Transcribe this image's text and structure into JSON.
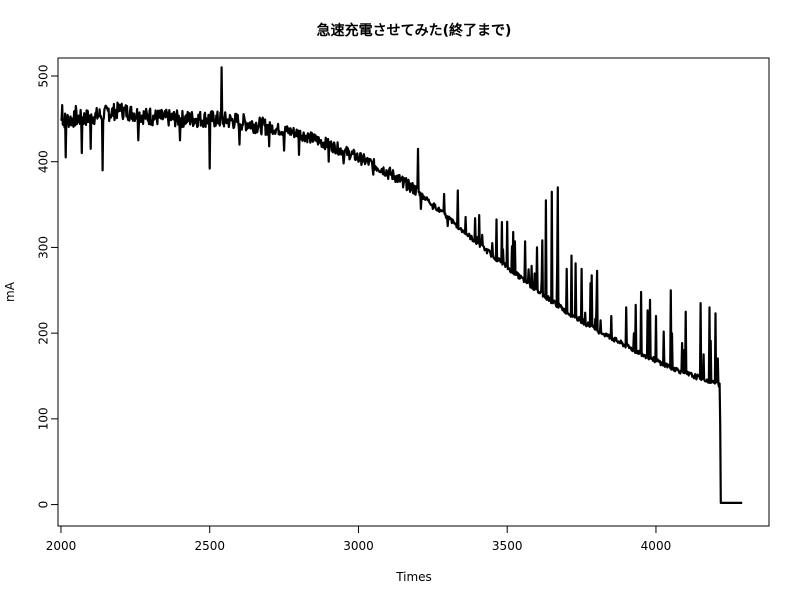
{
  "chart_data": {
    "type": "line",
    "title": "急速充電させてみた(終了まで)",
    "xlabel": "Times",
    "ylabel": "mA",
    "xlim": [
      1990,
      4380
    ],
    "ylim": [
      -25,
      521
    ],
    "x_ticks": [
      2000,
      2500,
      3000,
      3500,
      4000
    ],
    "y_ticks": [
      0,
      100,
      200,
      300,
      400,
      500
    ],
    "x_tick_labels": [
      "2000",
      "2500",
      "3000",
      "3500",
      "4000"
    ],
    "y_tick_labels": [
      "0",
      "100",
      "200",
      "300",
      "400",
      "500"
    ],
    "grid": false,
    "legend": "none",
    "line_color": "#000000",
    "series": [
      {
        "x_start": 2000,
        "x_end": 4290,
        "baseline": [
          [
            2000,
            448
          ],
          [
            2100,
            452
          ],
          [
            2200,
            460
          ],
          [
            2300,
            452
          ],
          [
            2400,
            450
          ],
          [
            2500,
            450
          ],
          [
            2600,
            447
          ],
          [
            2700,
            440
          ],
          [
            2800,
            433
          ],
          [
            2900,
            420
          ],
          [
            3000,
            405
          ],
          [
            3100,
            388
          ],
          [
            3200,
            365
          ],
          [
            3300,
            335
          ],
          [
            3400,
            305
          ],
          [
            3500,
            277
          ],
          [
            3600,
            250
          ],
          [
            3700,
            225
          ],
          [
            3800,
            204
          ],
          [
            3900,
            185
          ],
          [
            4000,
            168
          ],
          [
            4100,
            153
          ],
          [
            4200,
            142
          ],
          [
            4215,
            140
          ],
          [
            4218,
            2
          ],
          [
            4290,
            2
          ]
        ],
        "spikes": [
          [
            2003,
            466
          ],
          [
            2015,
            405
          ],
          [
            2050,
            465
          ],
          [
            2070,
            410
          ],
          [
            2100,
            415
          ],
          [
            2140,
            390
          ],
          [
            2160,
            462
          ],
          [
            2200,
            466
          ],
          [
            2260,
            425
          ],
          [
            2300,
            462
          ],
          [
            2400,
            425
          ],
          [
            2500,
            392
          ],
          [
            2540,
            510
          ],
          [
            2600,
            420
          ],
          [
            2700,
            418
          ],
          [
            2750,
            413
          ],
          [
            2800,
            408
          ],
          [
            2900,
            400
          ],
          [
            2950,
            398
          ],
          [
            3000,
            400
          ],
          [
            3050,
            385
          ],
          [
            3100,
            380
          ],
          [
            3150,
            370
          ],
          [
            3170,
            375
          ],
          [
            3200,
            415
          ],
          [
            3210,
            345
          ],
          [
            3250,
            345
          ],
          [
            3300,
            325
          ],
          [
            3340,
            322
          ],
          [
            3400,
            312
          ],
          [
            3450,
            305
          ],
          [
            3500,
            330
          ],
          [
            3520,
            318
          ],
          [
            3560,
            307
          ],
          [
            3600,
            300
          ],
          [
            3630,
            355
          ],
          [
            3650,
            365
          ],
          [
            3670,
            370
          ],
          [
            3700,
            275
          ],
          [
            3750,
            275
          ],
          [
            3800,
            235
          ],
          [
            3850,
            220
          ],
          [
            3900,
            230
          ],
          [
            3950,
            248
          ],
          [
            4000,
            220
          ],
          [
            4050,
            250
          ],
          [
            4100,
            225
          ],
          [
            4150,
            235
          ],
          [
            4180,
            230
          ],
          [
            4200,
            223
          ]
        ]
      }
    ]
  }
}
